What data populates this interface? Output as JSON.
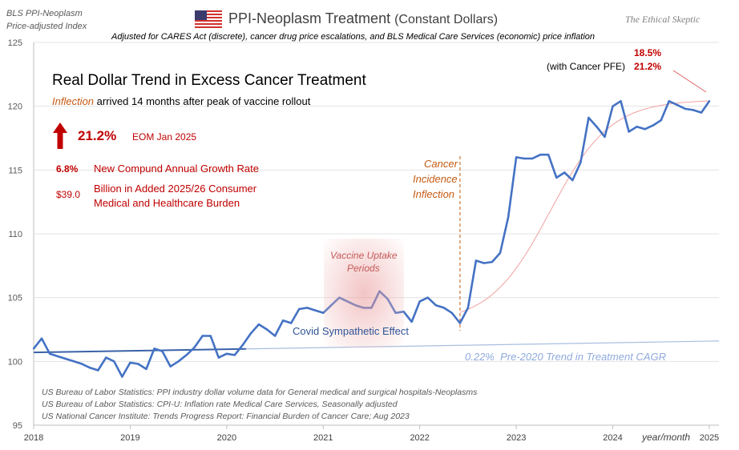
{
  "header": {
    "top_left_line1": "BLS PPI-Neoplasm",
    "top_left_line2": "Price-adjusted Index",
    "title": "PPI-Neoplasm Treatment",
    "title_suffix": "(Constant Dollars)",
    "subtitle": "Adjusted for CARES Act (discrete), cancer drug price escalations, and BLS Medical Care Services (economic) price inflation",
    "brand": "The Ethical Skeptic",
    "flag_icon": "us-flag-icon"
  },
  "headline": {
    "title": "Real Dollar Trend in Excess Cancer Treatment",
    "inflection_word": "Inflection",
    "inflection_rest": "arrived 14 months after peak of vaccine rollout",
    "up_arrow_icon": "up-arrow-icon",
    "pct": "21.2%",
    "pct_label": "EOM Jan 2025",
    "cagr_value": "6.8%",
    "cagr_label": "New Compund Annual Growth Rate",
    "burden_value": "$39.0",
    "burden_line1": "Billion in Added 2025/26 Consumer",
    "burden_line2": "Medical and Healthcare Burden"
  },
  "annotations": {
    "cancer_incidence_1": "Cancer",
    "cancer_incidence_2": "Incidence",
    "cancer_incidence_3": "Inflection",
    "vaccine_1": "Vaccine Uptake",
    "vaccine_2": "Periods",
    "covid": "Covid Sympathetic Effect",
    "trend_pct": "0.22%",
    "trend_label": "Pre-2020 Trend in Treatment CAGR",
    "pfe_pct": "18.5%",
    "pfe_label": "(with Cancer PFE)",
    "pfe_pct2": "21.2%",
    "x_unit": "year/month"
  },
  "sources": [
    "US Bureau of Labor Statistics: PPI industry dollar volume data for General medical and surgical hospitals-Neoplasms",
    "US Bureau of Labor Statistics: CPI-U: Inflation rate Medical Care Services, Seasonally adjusted",
    "US National Cancer Institute: Trends Progress Report: Financial Burden of Cancer Care; Aug 2023"
  ],
  "colors": {
    "series": "#4472c4",
    "trend": "#3a62a8",
    "trend_light": "#a8bfe0",
    "red": "#c00000",
    "orange": "#c55a11",
    "pink": "#e06060",
    "grid": "#e3e3e3"
  },
  "chart_data": {
    "type": "line",
    "title": "PPI-Neoplasm Treatment (Constant Dollars)",
    "xlabel": "year/month",
    "ylabel": "",
    "xlim": [
      2018.0,
      2025.1
    ],
    "ylim": [
      95,
      125
    ],
    "y_ticks": [
      95,
      100,
      105,
      110,
      115,
      120,
      125
    ],
    "x_ticks": [
      "2018",
      "2019",
      "2020",
      "2021",
      "2022",
      "2023",
      "2024",
      "2025"
    ],
    "grid": true,
    "series": [
      {
        "name": "PPI-Neoplasm Treatment (Constant Dollars)",
        "x": [
          2018.0,
          2018.083,
          2018.167,
          2018.25,
          2018.333,
          2018.417,
          2018.5,
          2018.583,
          2018.667,
          2018.75,
          2018.833,
          2018.917,
          2019.0,
          2019.083,
          2019.167,
          2019.25,
          2019.333,
          2019.417,
          2019.5,
          2019.583,
          2019.667,
          2019.75,
          2019.833,
          2019.917,
          2020.0,
          2020.083,
          2020.167,
          2020.25,
          2020.333,
          2020.417,
          2020.5,
          2020.583,
          2020.667,
          2020.75,
          2020.833,
          2020.917,
          2021.0,
          2021.083,
          2021.167,
          2021.25,
          2021.333,
          2021.417,
          2021.5,
          2021.583,
          2021.667,
          2021.75,
          2021.833,
          2021.917,
          2022.0,
          2022.083,
          2022.167,
          2022.25,
          2022.333,
          2022.417,
          2022.5,
          2022.583,
          2022.667,
          2022.75,
          2022.833,
          2022.917,
          2023.0,
          2023.083,
          2023.167,
          2023.25,
          2023.333,
          2023.417,
          2023.5,
          2023.583,
          2023.667,
          2023.75,
          2023.833,
          2023.917,
          2024.0,
          2024.083,
          2024.167,
          2024.25,
          2024.333,
          2024.417,
          2024.5,
          2024.583,
          2024.667,
          2024.75,
          2024.833,
          2024.917,
          2025.0
        ],
        "y": [
          101.0,
          101.8,
          100.6,
          100.4,
          100.2,
          100.0,
          99.8,
          99.5,
          99.3,
          100.3,
          100.0,
          98.8,
          99.9,
          99.8,
          99.4,
          101.0,
          100.8,
          99.6,
          100.0,
          100.5,
          101.1,
          102.0,
          102.0,
          100.3,
          100.6,
          100.5,
          101.3,
          102.2,
          102.9,
          102.5,
          102.0,
          103.2,
          103.0,
          104.1,
          104.2,
          104.0,
          103.8,
          104.4,
          105.0,
          104.7,
          104.4,
          104.2,
          104.2,
          105.5,
          104.9,
          103.8,
          103.9,
          103.1,
          104.7,
          105.0,
          104.4,
          104.2,
          103.8,
          103.0,
          104.2,
          107.9,
          107.7,
          107.8,
          108.5,
          111.3,
          116.0,
          115.9,
          115.9,
          116.2,
          116.2,
          114.4,
          114.8,
          114.2,
          115.6,
          119.1,
          118.4,
          117.6,
          120.0,
          120.4,
          118.0,
          118.4,
          118.2,
          118.5,
          118.9,
          120.4,
          120.1,
          119.8,
          119.7,
          119.5,
          120.4
        ]
      }
    ],
    "pre2020_trend": {
      "rate": "0.22%",
      "x": [
        2018.0,
        2025.1
      ],
      "y": [
        100.7,
        101.6
      ]
    }
  }
}
